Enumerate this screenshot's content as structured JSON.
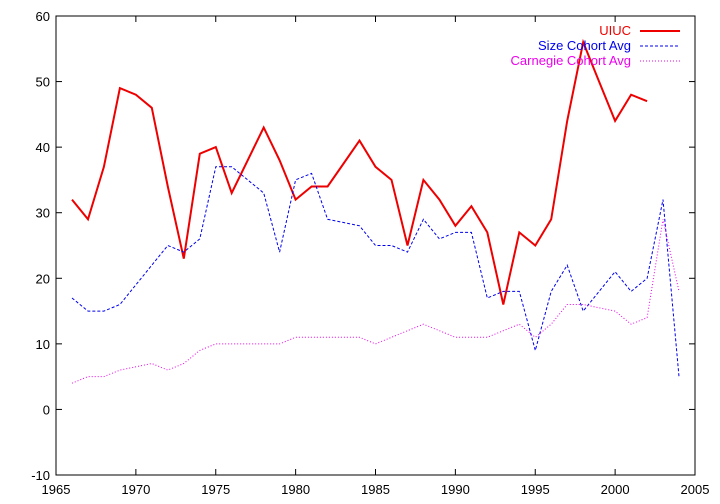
{
  "chart_data": {
    "type": "line",
    "title": "",
    "xlabel": "",
    "ylabel": "",
    "xlim": [
      1965,
      2005
    ],
    "ylim": [
      -10,
      60
    ],
    "x_ticks": [
      1965,
      1970,
      1975,
      1980,
      1985,
      1990,
      1995,
      2000,
      2005
    ],
    "y_ticks": [
      -10,
      0,
      10,
      20,
      30,
      40,
      50,
      60
    ],
    "grid": false,
    "legend_position": "top-right",
    "series": [
      {
        "name": "UIUC",
        "color": "#ee0000",
        "style": "solid",
        "x": [
          1966,
          1967,
          1968,
          1969,
          1970,
          1971,
          1972,
          1973,
          1974,
          1975,
          1976,
          1977,
          1978,
          1979,
          1980,
          1981,
          1982,
          1983,
          1984,
          1985,
          1986,
          1987,
          1988,
          1989,
          1990,
          1991,
          1992,
          1993,
          1994,
          1995,
          1996,
          1997,
          1998,
          1999,
          2000,
          2001,
          2002
        ],
        "y": [
          32,
          29,
          37,
          49,
          48,
          46,
          34,
          23,
          39,
          40,
          33,
          38,
          43,
          38,
          32,
          34,
          34,
          37.5,
          41,
          37,
          35,
          25,
          35,
          32,
          28,
          31,
          27,
          16,
          27,
          25,
          29,
          44,
          56,
          50,
          44,
          48,
          47
        ]
      },
      {
        "name": "Size Cohort Avg",
        "color": "#0000ee",
        "style": "dashed",
        "x": [
          1966,
          1967,
          1968,
          1969,
          1970,
          1971,
          1972,
          1973,
          1974,
          1975,
          1976,
          1977,
          1978,
          1979,
          1980,
          1981,
          1982,
          1983,
          1984,
          1985,
          1986,
          1987,
          1988,
          1989,
          1990,
          1991,
          1992,
          1993,
          1994,
          1995,
          1996,
          1997,
          1998,
          1999,
          2000,
          2001,
          2002,
          2003,
          2004
        ],
        "y": [
          17,
          15,
          15,
          16,
          19,
          22,
          25,
          24,
          26,
          37,
          37,
          35,
          33,
          24,
          35,
          36,
          29,
          28.5,
          28,
          25,
          25,
          24,
          29,
          26,
          27,
          27,
          17,
          18,
          18,
          9,
          18,
          22,
          15,
          18,
          21,
          18,
          20,
          32,
          5
        ]
      },
      {
        "name": "Carnegie Cohort Avg",
        "color": "#ee00ee",
        "style": "dotted",
        "x": [
          1966,
          1967,
          1968,
          1969,
          1970,
          1971,
          1972,
          1973,
          1974,
          1975,
          1976,
          1977,
          1978,
          1979,
          1980,
          1981,
          1982,
          1983,
          1984,
          1985,
          1986,
          1987,
          1988,
          1989,
          1990,
          1991,
          1992,
          1993,
          1994,
          1995,
          1996,
          1997,
          1998,
          1999,
          2000,
          2001,
          2002,
          2003,
          2004
        ],
        "y": [
          4,
          5,
          5,
          6,
          6.5,
          7,
          6,
          7,
          9,
          10,
          10,
          10,
          10,
          10,
          11,
          11,
          11,
          11,
          11,
          10,
          11,
          12,
          13,
          12,
          11,
          11,
          11,
          12,
          13,
          11,
          13,
          16,
          16,
          15.5,
          15,
          13,
          14,
          29,
          18
        ]
      }
    ]
  }
}
